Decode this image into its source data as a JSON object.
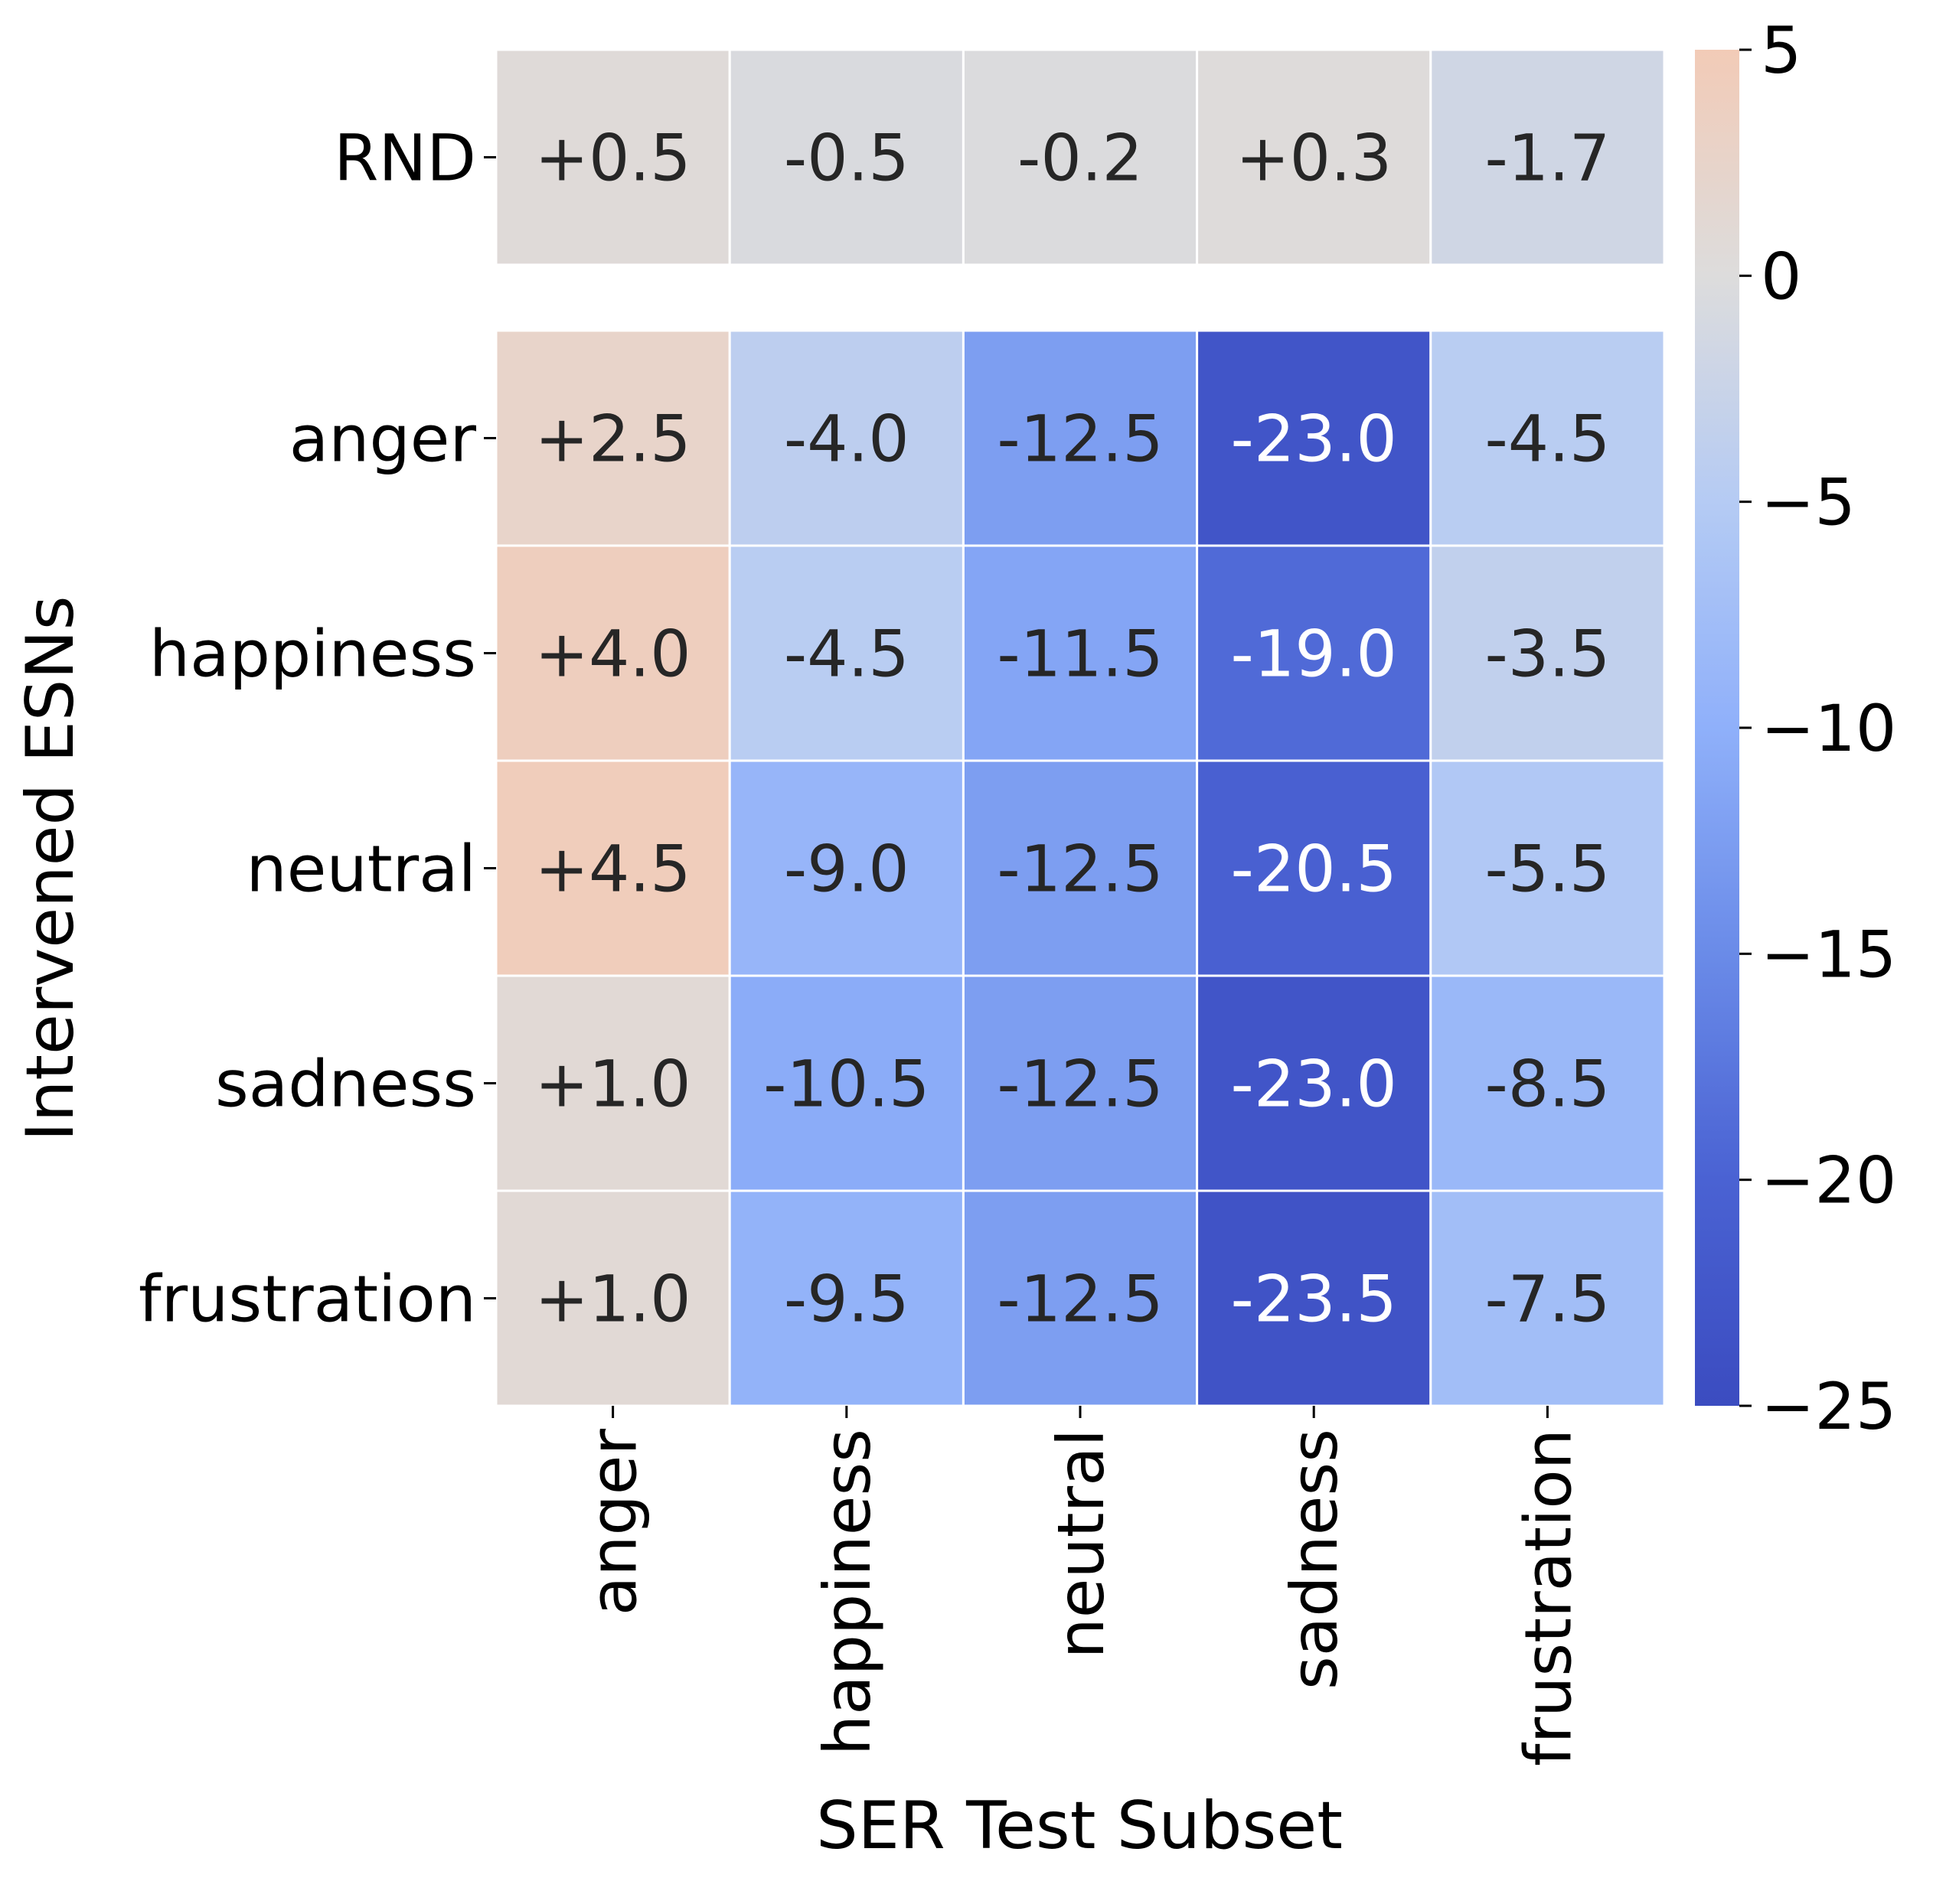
{
  "chart_data": {
    "type": "heatmap",
    "xlabel": "SER Test Subset",
    "ylabel": "Intervened ESNs",
    "x_categories": [
      "anger",
      "happiness",
      "neutral",
      "sadness",
      "frustration"
    ],
    "y_categories": [
      "RND",
      "anger",
      "happiness",
      "neutral",
      "sadness",
      "frustration"
    ],
    "values": [
      [
        0.5,
        -0.5,
        -0.2,
        0.3,
        -1.7
      ],
      [
        2.5,
        -4.0,
        -12.5,
        -23.0,
        -4.5
      ],
      [
        4.0,
        -4.5,
        -11.5,
        -19.0,
        -3.5
      ],
      [
        4.5,
        -9.0,
        -12.5,
        -20.5,
        -5.5
      ],
      [
        1.0,
        -10.5,
        -12.5,
        -23.0,
        -8.5
      ],
      [
        1.0,
        -9.5,
        -12.5,
        -23.5,
        -7.5
      ]
    ],
    "cell_labels": [
      [
        "+0.5",
        "-0.5",
        "-0.2",
        "+0.3",
        "-1.7"
      ],
      [
        "+2.5",
        "-4.0",
        "-12.5",
        "-23.0",
        "-4.5"
      ],
      [
        "+4.0",
        "-4.5",
        "-11.5",
        "-19.0",
        "-3.5"
      ],
      [
        "+4.5",
        "-9.0",
        "-12.5",
        "-20.5",
        "-5.5"
      ],
      [
        "+1.0",
        "-10.5",
        "-12.5",
        "-23.0",
        "-8.5"
      ],
      [
        "+1.0",
        "-9.5",
        "-12.5",
        "-23.5",
        "-7.5"
      ]
    ],
    "colorbar": {
      "range": [
        -25,
        5
      ],
      "center": 0,
      "ticks": [
        5,
        0,
        -5,
        -10,
        -15,
        -20,
        -25
      ],
      "tick_labels": [
        "5",
        "0",
        "−5",
        "−10",
        "−15",
        "−20",
        "−25"
      ],
      "colormap": "coolwarm"
    },
    "colors": {
      "low": "#3b4cc0",
      "mid": "#dddcdc",
      "high": "#f2cbb7",
      "text_dark": "#262626",
      "text_light": "#ffffff",
      "axis": "#000000"
    }
  }
}
